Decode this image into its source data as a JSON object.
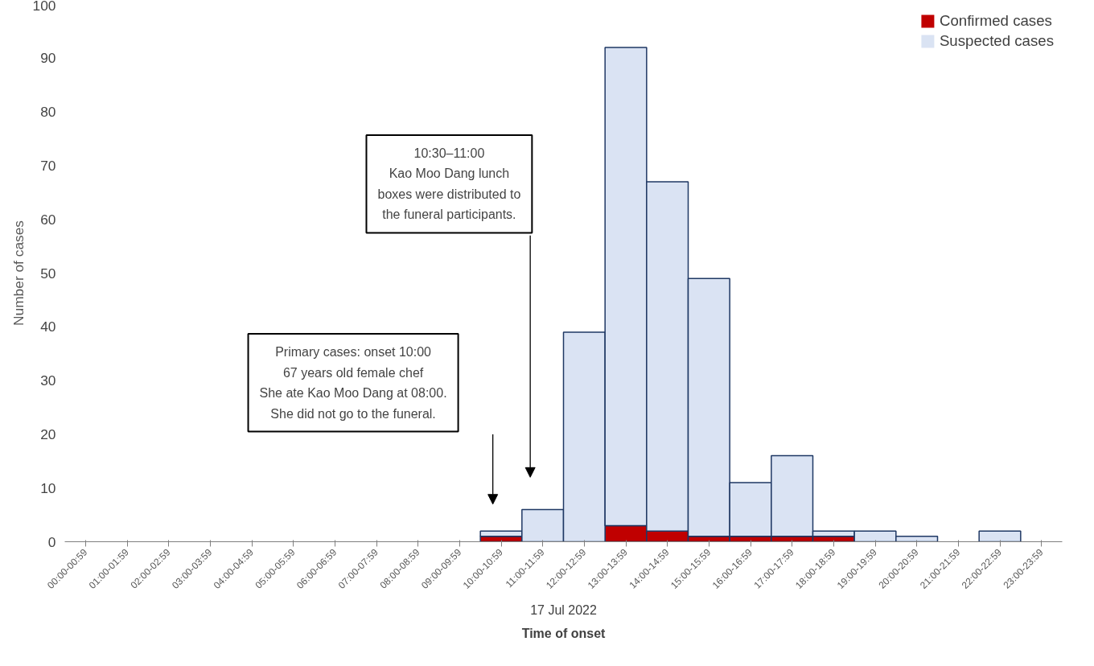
{
  "chart_data": {
    "type": "bar",
    "stacked": true,
    "xlabel": "Time of onset",
    "ylabel": "Number of cases",
    "categories": [
      "00:00-00:59",
      "01:00-01:59",
      "02:00-02:59",
      "03:00-03:59",
      "04:00-04:59",
      "05:00-05:59",
      "06:00-06:59",
      "07:00-07:59",
      "08:00-08:59",
      "09:00-09:59",
      "10:00-10:59",
      "11:00-11:59",
      "12:00-12:59",
      "13:00-13:59",
      "14:00-14:59",
      "15:00-15:59",
      "16:00-16:59",
      "17:00-17:59",
      "18:00-18:59",
      "19:00-19:59",
      "20:00-20:59",
      "21:00-21:59",
      "22:00-22:59",
      "23:00-23:59"
    ],
    "series": [
      {
        "name": "Confirmed cases",
        "color": "#c00000",
        "values": [
          0,
          0,
          0,
          0,
          0,
          0,
          0,
          0,
          0,
          0,
          1,
          0,
          0,
          3,
          2,
          1,
          1,
          1,
          1,
          0,
          0,
          0,
          0,
          0
        ]
      },
      {
        "name": "Suspected cases",
        "color": "#dae3f3",
        "values": [
          0,
          0,
          0,
          0,
          0,
          0,
          0,
          0,
          0,
          0,
          1,
          6,
          39,
          89,
          65,
          48,
          10,
          15,
          1,
          2,
          1,
          0,
          2,
          0
        ]
      }
    ],
    "ylim": [
      0,
      100
    ],
    "yticks": [
      0,
      10,
      20,
      30,
      40,
      50,
      60,
      70,
      80,
      90,
      100
    ],
    "grid": false,
    "legend": "top right",
    "annotations": [
      "17 Jul 2022",
      "Primary cases: onset 10:00\n67 years old female chef\nShe ate Kao Moo Dang at 08:00.\nShe did not go to the funeral.",
      "10:30–11:00\nKao Moo Dang lunch\nboxes were distributed to\nthe funeral participants."
    ]
  }
}
